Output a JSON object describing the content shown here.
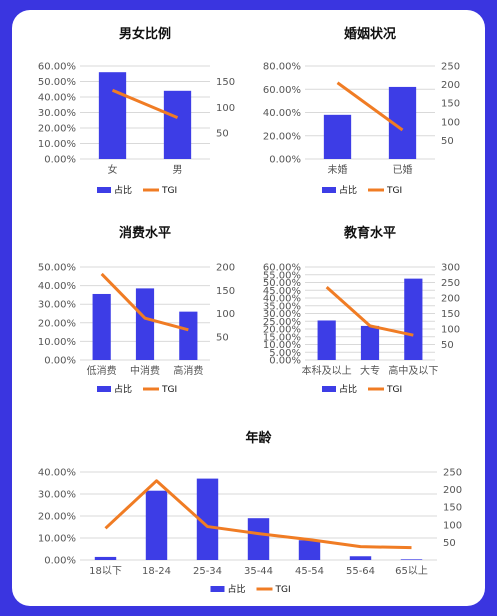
{
  "colors": {
    "bar": "#3d3de6",
    "line": "#f07c24",
    "grid": "#d9d9d9",
    "text": "#555555",
    "title": "#111111",
    "background": "#3a35e0"
  },
  "chart_data": [
    {
      "type": "bar",
      "title": "男女比例",
      "categories": [
        "女",
        "男"
      ],
      "series": [
        {
          "name": "占比",
          "type": "bar",
          "axis": "left",
          "values": [
            0.56,
            0.44
          ]
        },
        {
          "name": "TGI",
          "type": "line",
          "axis": "right",
          "values": [
            133,
            80
          ]
        }
      ],
      "ylim": [
        0,
        0.6
      ],
      "yticks": [
        "0.00%",
        "10.00%",
        "20.00%",
        "30.00%",
        "40.00%",
        "50.00%",
        "60.00%"
      ],
      "y2lim": [
        0,
        180
      ],
      "y2ticks": [
        50,
        100,
        150
      ],
      "legend": "bottom",
      "grid": true
    },
    {
      "type": "bar",
      "title": "婚姻状况",
      "categories": [
        "未婚",
        "已婚"
      ],
      "series": [
        {
          "name": "占比",
          "type": "bar",
          "axis": "left",
          "values": [
            0.38,
            0.62
          ]
        },
        {
          "name": "TGI",
          "type": "line",
          "axis": "right",
          "values": [
            205,
            78
          ]
        }
      ],
      "ylim": [
        0,
        0.8
      ],
      "yticks": [
        "0.00%",
        "20.00%",
        "40.00%",
        "60.00%",
        "80.00%"
      ],
      "y2lim": [
        0,
        250
      ],
      "y2ticks": [
        50,
        100,
        150,
        200,
        250
      ],
      "legend": "bottom",
      "grid": true
    },
    {
      "type": "bar",
      "title": "消费水平",
      "categories": [
        "低消费",
        "中消费",
        "高消费"
      ],
      "series": [
        {
          "name": "占比",
          "type": "bar",
          "axis": "left",
          "values": [
            0.355,
            0.385,
            0.26
          ]
        },
        {
          "name": "TGI",
          "type": "line",
          "axis": "right",
          "values": [
            185,
            90,
            65
          ]
        }
      ],
      "ylim": [
        0,
        0.5
      ],
      "yticks": [
        "0.00%",
        "10.00%",
        "20.00%",
        "30.00%",
        "40.00%",
        "50.00%"
      ],
      "y2lim": [
        0,
        200
      ],
      "y2ticks": [
        50,
        100,
        150,
        200
      ],
      "legend": "bottom",
      "grid": true
    },
    {
      "type": "bar",
      "title": "教育水平",
      "categories": [
        "本科及以上",
        "大专",
        "高中及以下"
      ],
      "series": [
        {
          "name": "占比",
          "type": "bar",
          "axis": "left",
          "values": [
            0.255,
            0.22,
            0.525
          ]
        },
        {
          "name": "TGI",
          "type": "line",
          "axis": "right",
          "values": [
            235,
            110,
            80
          ]
        }
      ],
      "ylim": [
        0,
        0.6
      ],
      "yticks": [
        "0.00%",
        "5.00%",
        "10.00%",
        "15.00%",
        "20.00%",
        "25.00%",
        "30.00%",
        "35.00%",
        "40.00%",
        "45.00%",
        "50.00%",
        "55.00%",
        "60.00%"
      ],
      "y2lim": [
        0,
        300
      ],
      "y2ticks": [
        50,
        100,
        150,
        200,
        250,
        300
      ],
      "legend": "bottom",
      "grid": true
    },
    {
      "type": "bar",
      "title": "年龄",
      "categories": [
        "18以下",
        "18-24",
        "25-34",
        "35-44",
        "45-54",
        "55-64",
        "65以上"
      ],
      "series": [
        {
          "name": "占比",
          "type": "bar",
          "axis": "left",
          "values": [
            0.014,
            0.315,
            0.37,
            0.19,
            0.09,
            0.017,
            0.003
          ]
        },
        {
          "name": "TGI",
          "type": "line",
          "axis": "right",
          "values": [
            90,
            225,
            95,
            75,
            58,
            38,
            35
          ]
        }
      ],
      "ylim": [
        0,
        0.4
      ],
      "yticks": [
        "0.00%",
        "10.00%",
        "20.00%",
        "30.00%",
        "40.00%"
      ],
      "y2lim": [
        0,
        250
      ],
      "y2ticks": [
        50,
        100,
        150,
        200,
        250
      ],
      "legend": "bottom",
      "grid": true
    }
  ]
}
